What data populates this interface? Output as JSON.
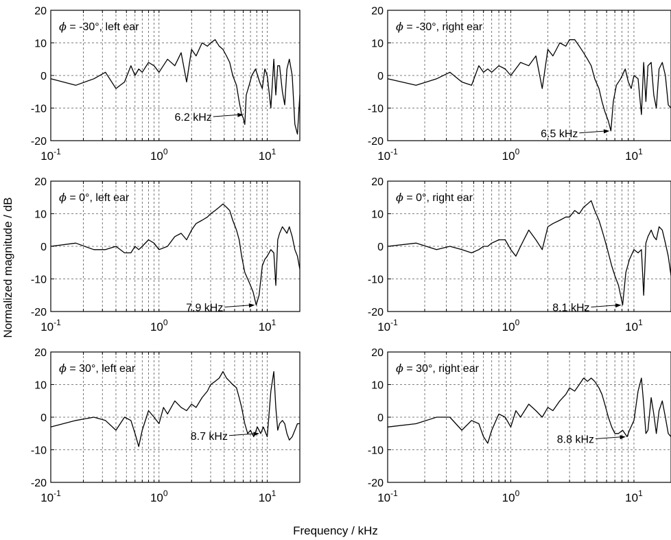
{
  "figure": {
    "ylabel": "Normalized magnitude / dB",
    "xlabel": "Frequency / kHz"
  },
  "chart_data": [
    {
      "type": "line",
      "title": "ϕ = -30°, left ear",
      "title_symbol": "ϕ",
      "title_text": " = -30°, left ear",
      "x_scale": "log",
      "xlim": [
        0.1,
        20
      ],
      "ylim": [
        -20,
        20
      ],
      "yticks": [
        -20,
        -10,
        0,
        10,
        20
      ],
      "xtick_labels": [
        "10",
        "-1",
        "10",
        "0",
        "10",
        "1"
      ],
      "grid": true,
      "annotation": {
        "text": "6.2 kHz",
        "x": 6.2,
        "y": -12
      },
      "series": [
        {
          "x": [
            0.1,
            0.17,
            0.25,
            0.32,
            0.4,
            0.48,
            0.55,
            0.6,
            0.65,
            0.7,
            0.8,
            0.9,
            1.0,
            1.2,
            1.4,
            1.6,
            1.8,
            2.0,
            2.2,
            2.5,
            2.8,
            3.0,
            3.3,
            3.6,
            3.9,
            4.2,
            4.5,
            4.8,
            5.2,
            5.5,
            5.8,
            6.0,
            6.2,
            6.4,
            6.8,
            7.2,
            7.8,
            8.5,
            9.0,
            9.5,
            10.0,
            10.8,
            11.5,
            12.0,
            12.5,
            13.0,
            13.8,
            14.5,
            15.2,
            16.0,
            17.0,
            18.0,
            19.0,
            20.0
          ],
          "y": [
            -1,
            -3,
            -1,
            1,
            -4,
            -2,
            3,
            0,
            2,
            1,
            4,
            3,
            1,
            5,
            3,
            7,
            -2,
            8,
            6,
            10,
            9,
            10,
            11,
            9,
            8,
            6,
            4,
            0,
            -3,
            -8,
            -12,
            -13,
            -15,
            -6,
            -3,
            0,
            2,
            -2,
            -4,
            2,
            0,
            -10,
            5,
            -6,
            3,
            3,
            -5,
            -9,
            2,
            5,
            0,
            -15,
            -18,
            -6
          ]
        }
      ]
    },
    {
      "type": "line",
      "title": "ϕ = -30°, right ear",
      "title_symbol": "ϕ",
      "title_text": " = -30°, right ear",
      "x_scale": "log",
      "xlim": [
        0.1,
        20
      ],
      "ylim": [
        -20,
        20
      ],
      "yticks": [
        -20,
        -10,
        0,
        10,
        20
      ],
      "xtick_labels": [
        "10",
        "-1",
        "10",
        "0",
        "10",
        "1"
      ],
      "grid": true,
      "annotation": {
        "text": "6.5 kHz",
        "x": 6.5,
        "y": -17
      },
      "series": [
        {
          "x": [
            0.1,
            0.17,
            0.25,
            0.32,
            0.4,
            0.48,
            0.55,
            0.6,
            0.65,
            0.7,
            0.8,
            0.9,
            1.0,
            1.2,
            1.4,
            1.6,
            1.8,
            2.0,
            2.2,
            2.5,
            2.8,
            3.0,
            3.3,
            3.6,
            3.9,
            4.2,
            4.5,
            4.8,
            5.2,
            5.5,
            5.8,
            6.2,
            6.5,
            6.8,
            7.2,
            7.8,
            8.5,
            9.0,
            9.5,
            10.0,
            10.8,
            11.5,
            12.0,
            12.5,
            13.0,
            13.8,
            14.5,
            15.2,
            16.0,
            17.0,
            18.0,
            19.0,
            20.0
          ],
          "y": [
            -1,
            -3,
            -1,
            1,
            -2,
            -3,
            3,
            1,
            2,
            1,
            3,
            2,
            0,
            4,
            3,
            6,
            -4,
            8,
            6,
            10,
            9,
            11,
            11,
            9,
            7,
            5,
            3,
            -1,
            -4,
            -8,
            -11,
            -14,
            -17,
            -8,
            -3,
            -1,
            2,
            -2,
            -4,
            0,
            -1,
            -12,
            4,
            -8,
            3,
            4,
            -6,
            -10,
            2,
            4,
            0,
            -9,
            -10
          ]
        }
      ]
    },
    {
      "type": "line",
      "title": "ϕ = 0°, left ear",
      "title_symbol": "ϕ",
      "title_text": " = 0°, left ear",
      "x_scale": "log",
      "xlim": [
        0.1,
        20
      ],
      "ylim": [
        -20,
        20
      ],
      "yticks": [
        -20,
        -10,
        0,
        10,
        20
      ],
      "xtick_labels": [
        "10",
        "-1",
        "10",
        "0",
        "10",
        "1"
      ],
      "grid": true,
      "annotation": {
        "text": "7.9 kHz",
        "x": 7.9,
        "y": -18
      },
      "series": [
        {
          "x": [
            0.1,
            0.17,
            0.25,
            0.32,
            0.4,
            0.48,
            0.55,
            0.6,
            0.65,
            0.7,
            0.8,
            0.9,
            1.0,
            1.2,
            1.4,
            1.6,
            1.8,
            2.0,
            2.2,
            2.5,
            2.8,
            3.0,
            3.3,
            3.6,
            3.9,
            4.2,
            4.5,
            4.8,
            5.2,
            5.5,
            5.8,
            6.2,
            6.6,
            7.0,
            7.4,
            7.9,
            8.4,
            9.0,
            9.5,
            10.0,
            10.8,
            11.5,
            12.0,
            12.5,
            13.0,
            13.8,
            14.5,
            15.2,
            16.0,
            17.0,
            18.0,
            19.0,
            20.0
          ],
          "y": [
            0,
            1,
            -1,
            -1,
            0,
            -2,
            -2,
            0,
            -1,
            0,
            2,
            1,
            -1,
            0,
            3,
            4,
            2,
            5,
            7,
            8,
            9,
            10,
            11,
            12,
            13,
            12,
            11,
            8,
            5,
            2,
            -3,
            -8,
            -10,
            -12,
            -14,
            -18,
            -15,
            -6,
            -4,
            -3,
            -1,
            -2,
            -12,
            2,
            4,
            6,
            5,
            4,
            6,
            3,
            -1,
            -3,
            -7
          ]
        }
      ]
    },
    {
      "type": "line",
      "title": "ϕ = 0°, right ear",
      "title_symbol": "ϕ",
      "title_text": " = 0°, right ear",
      "x_scale": "log",
      "xlim": [
        0.1,
        20
      ],
      "ylim": [
        -20,
        20
      ],
      "yticks": [
        -20,
        -10,
        0,
        10,
        20
      ],
      "xtick_labels": [
        "10",
        "-1",
        "10",
        "0",
        "10",
        "1"
      ],
      "grid": true,
      "annotation": {
        "text": "8.1 kHz",
        "x": 8.1,
        "y": -18
      },
      "series": [
        {
          "x": [
            0.1,
            0.17,
            0.25,
            0.32,
            0.4,
            0.48,
            0.55,
            0.6,
            0.65,
            0.7,
            0.8,
            0.9,
            1.0,
            1.1,
            1.2,
            1.4,
            1.6,
            1.8,
            2.0,
            2.2,
            2.5,
            2.8,
            3.0,
            3.3,
            3.6,
            3.9,
            4.2,
            4.5,
            4.8,
            5.2,
            5.5,
            5.8,
            6.2,
            6.6,
            7.0,
            7.5,
            8.1,
            8.6,
            9.2,
            10.0,
            10.8,
            11.5,
            12.0,
            12.5,
            13.0,
            13.8,
            14.5,
            15.2,
            16.0,
            17.0,
            18.0,
            19.0,
            20.0
          ],
          "y": [
            0,
            1,
            -1,
            0,
            -1,
            -2,
            -1,
            0,
            0,
            1,
            2,
            2,
            -1,
            -3,
            0,
            5,
            2,
            -1,
            6,
            7,
            8,
            9,
            9,
            11,
            10,
            12,
            13,
            14,
            11,
            8,
            5,
            2,
            -2,
            -6,
            -9,
            -12,
            -18,
            -8,
            -4,
            -1,
            -2,
            -1,
            -15,
            1,
            3,
            5,
            3,
            2,
            6,
            5,
            1,
            -3,
            -9
          ]
        }
      ]
    },
    {
      "type": "line",
      "title": "ϕ = 30°, left ear",
      "title_symbol": "ϕ",
      "title_text": " = 30°, left ear",
      "x_scale": "log",
      "xlim": [
        0.1,
        20
      ],
      "ylim": [
        -20,
        20
      ],
      "yticks": [
        -20,
        -10,
        0,
        10,
        20
      ],
      "xtick_labels": [
        "10",
        "-1",
        "10",
        "0",
        "10",
        "1"
      ],
      "grid": true,
      "annotation": {
        "text": "8.7 kHz",
        "x": 8.7,
        "y": -5
      },
      "series": [
        {
          "x": [
            0.1,
            0.17,
            0.25,
            0.32,
            0.4,
            0.48,
            0.55,
            0.6,
            0.65,
            0.7,
            0.8,
            0.9,
            1.0,
            1.1,
            1.2,
            1.4,
            1.6,
            1.8,
            2.0,
            2.2,
            2.5,
            2.8,
            3.0,
            3.3,
            3.6,
            3.9,
            4.2,
            4.5,
            4.8,
            5.2,
            5.5,
            5.8,
            6.2,
            6.6,
            7.0,
            7.5,
            8.1,
            8.7,
            9.2,
            10.0,
            10.8,
            11.5,
            12.0,
            12.5,
            13.0,
            13.8,
            14.5,
            15.2,
            16.0,
            17.0,
            18.0,
            19.0,
            20.0
          ],
          "y": [
            -3,
            -1,
            0,
            -1,
            -4,
            0,
            -1,
            -5,
            -9,
            -4,
            2,
            0,
            -2,
            3,
            1,
            5,
            3,
            2,
            4,
            3,
            6,
            8,
            10,
            11,
            12,
            14,
            12,
            11,
            10,
            9,
            6,
            3,
            -2,
            -5,
            -4,
            -6,
            -3,
            -5,
            -3,
            -6,
            8,
            14,
            3,
            -4,
            -2,
            -1,
            -2,
            -5,
            -7,
            -6,
            -4,
            -2,
            -2
          ]
        }
      ]
    },
    {
      "type": "line",
      "title": "ϕ = 30°, right ear",
      "title_symbol": "ϕ",
      "title_text": " = 30°, right ear",
      "x_scale": "log",
      "xlim": [
        0.1,
        20
      ],
      "ylim": [
        -20,
        20
      ],
      "yticks": [
        -20,
        -10,
        0,
        10,
        20
      ],
      "xtick_labels": [
        "10",
        "-1",
        "10",
        "0",
        "10",
        "1"
      ],
      "grid": true,
      "annotation": {
        "text": "8.8 kHz",
        "x": 8.8,
        "y": -6
      },
      "series": [
        {
          "x": [
            0.1,
            0.17,
            0.25,
            0.32,
            0.4,
            0.48,
            0.55,
            0.6,
            0.65,
            0.7,
            0.8,
            0.9,
            1.0,
            1.1,
            1.2,
            1.4,
            1.6,
            1.8,
            2.0,
            2.2,
            2.5,
            2.8,
            3.0,
            3.3,
            3.6,
            3.9,
            4.2,
            4.5,
            4.8,
            5.2,
            5.5,
            5.8,
            6.2,
            6.6,
            7.0,
            7.5,
            8.1,
            8.8,
            9.2,
            10.0,
            10.8,
            11.5,
            12.0,
            12.5,
            13.0,
            13.8,
            14.5,
            15.2,
            16.0,
            17.0,
            18.0,
            19.0,
            20.0
          ],
          "y": [
            -3,
            -2,
            0,
            0,
            -4,
            -1,
            -2,
            -6,
            -8,
            -4,
            1,
            0,
            -3,
            2,
            0,
            4,
            2,
            0,
            3,
            2,
            5,
            7,
            9,
            8,
            10,
            12,
            11,
            12,
            11,
            9,
            7,
            4,
            0,
            -3,
            -5,
            -5,
            -4,
            -6,
            -4,
            -1,
            8,
            12,
            4,
            -5,
            -4,
            6,
            1,
            -5,
            2,
            5,
            0,
            -5,
            -6
          ]
        }
      ]
    }
  ]
}
